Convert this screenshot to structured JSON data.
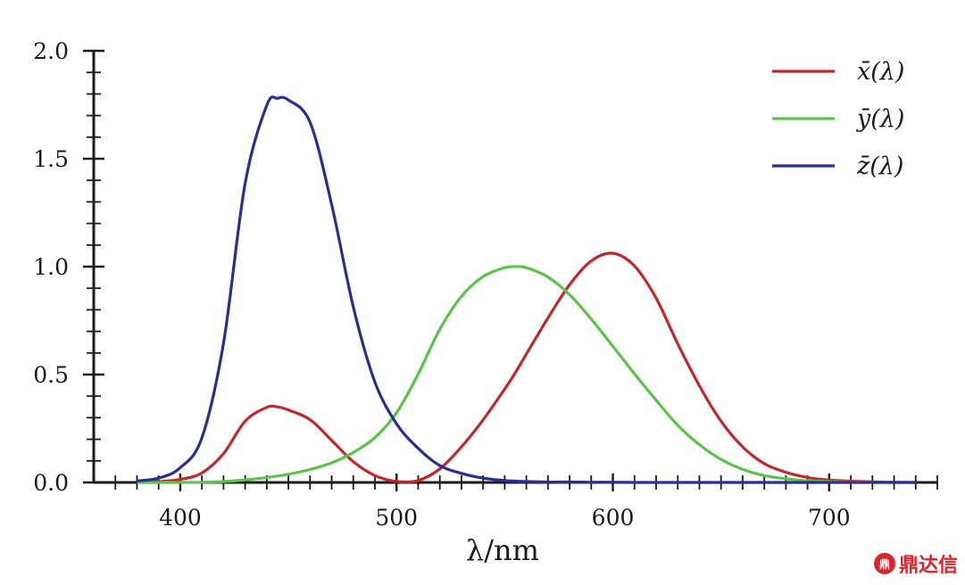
{
  "chart_data": {
    "type": "line",
    "xlabel": "λ/nm",
    "ylabel": "",
    "xlim": [
      360,
      750
    ],
    "ylim": [
      0,
      2.0
    ],
    "x_ticks": [
      400,
      500,
      600,
      700
    ],
    "y_ticks": [
      "0.0",
      "0.5",
      "1.0",
      "1.5",
      "2.0"
    ],
    "grid": false,
    "legend_position": "top-right",
    "x": [
      380,
      390,
      400,
      410,
      420,
      430,
      440,
      445,
      450,
      460,
      470,
      480,
      490,
      500,
      510,
      520,
      530,
      540,
      550,
      555,
      560,
      570,
      580,
      590,
      600,
      610,
      620,
      630,
      640,
      650,
      660,
      670,
      680,
      690,
      700,
      710,
      720,
      730,
      740
    ],
    "series": [
      {
        "name": "x̄(λ)",
        "color": "#c0282d",
        "values": [
          0.001,
          0.004,
          0.014,
          0.044,
          0.134,
          0.284,
          0.348,
          0.35,
          0.336,
          0.291,
          0.195,
          0.096,
          0.032,
          0.005,
          0.009,
          0.063,
          0.165,
          0.29,
          0.433,
          0.51,
          0.595,
          0.762,
          0.916,
          1.026,
          1.062,
          1.003,
          0.854,
          0.642,
          0.448,
          0.284,
          0.165,
          0.087,
          0.047,
          0.023,
          0.011,
          0.006,
          0.003,
          0.001,
          0.0
        ]
      },
      {
        "name": "ȳ(λ)",
        "color": "#5cc34a",
        "values": [
          0.0,
          0.0,
          0.0,
          0.001,
          0.004,
          0.012,
          0.023,
          0.03,
          0.038,
          0.06,
          0.091,
          0.139,
          0.208,
          0.323,
          0.503,
          0.71,
          0.862,
          0.954,
          0.995,
          1.0,
          0.995,
          0.952,
          0.87,
          0.757,
          0.631,
          0.503,
          0.381,
          0.265,
          0.175,
          0.107,
          0.061,
          0.032,
          0.017,
          0.008,
          0.004,
          0.002,
          0.001,
          0.0,
          0.0
        ]
      },
      {
        "name": "z̄(λ)",
        "color": "#2a2f8f",
        "values": [
          0.007,
          0.02,
          0.068,
          0.207,
          0.646,
          1.386,
          1.747,
          1.78,
          1.772,
          1.669,
          1.288,
          0.813,
          0.465,
          0.272,
          0.158,
          0.078,
          0.042,
          0.02,
          0.009,
          0.006,
          0.004,
          0.002,
          0.002,
          0.001,
          0.001,
          0.0,
          0.0,
          0.0,
          0.0,
          0.0,
          0.0,
          0.0,
          0.0,
          0.0,
          0.0,
          0.0,
          0.0,
          0.0,
          0.0
        ]
      }
    ]
  },
  "watermark": {
    "logo_text": "鼎",
    "text": "鼎达信"
  }
}
